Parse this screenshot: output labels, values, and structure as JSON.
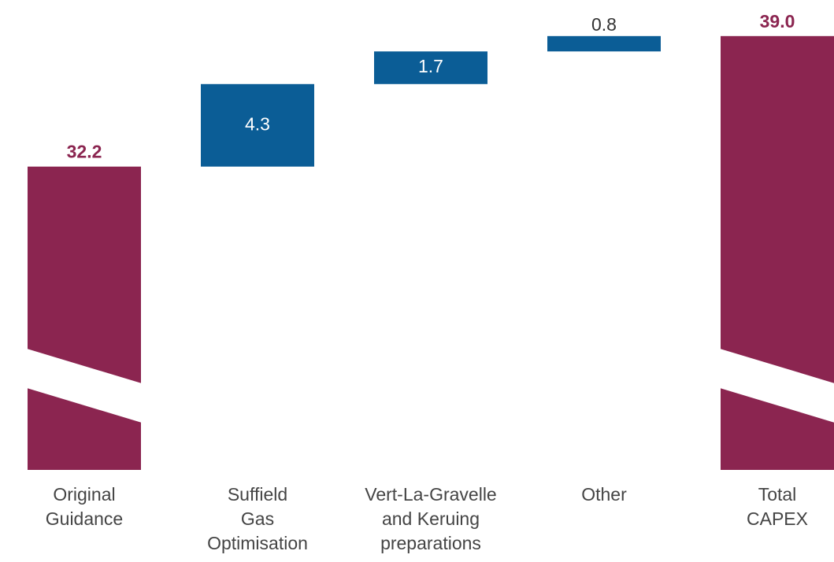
{
  "chart_data": {
    "type": "waterfall",
    "categories": [
      [
        "Original",
        "Guidance"
      ],
      [
        "Suffield",
        "Gas",
        "Optimisation"
      ],
      [
        "Vert-La-Gravelle",
        "and Keruing",
        "preparations"
      ],
      [
        "Other"
      ],
      [
        "Total",
        "CAPEX"
      ]
    ],
    "values": [
      32.2,
      4.3,
      1.7,
      0.8,
      39.0
    ],
    "value_labels": [
      "32.2",
      "4.3",
      "1.7",
      "0.8",
      "39.0"
    ],
    "measure": [
      "absolute",
      "relative",
      "relative",
      "relative",
      "absolute"
    ],
    "colors": [
      "#8b2550",
      "#0b5d96",
      "#0b5d96",
      "#0b5d96",
      "#8b2550"
    ],
    "ylim": [
      16.4,
      40.1
    ],
    "axis_break": true
  }
}
